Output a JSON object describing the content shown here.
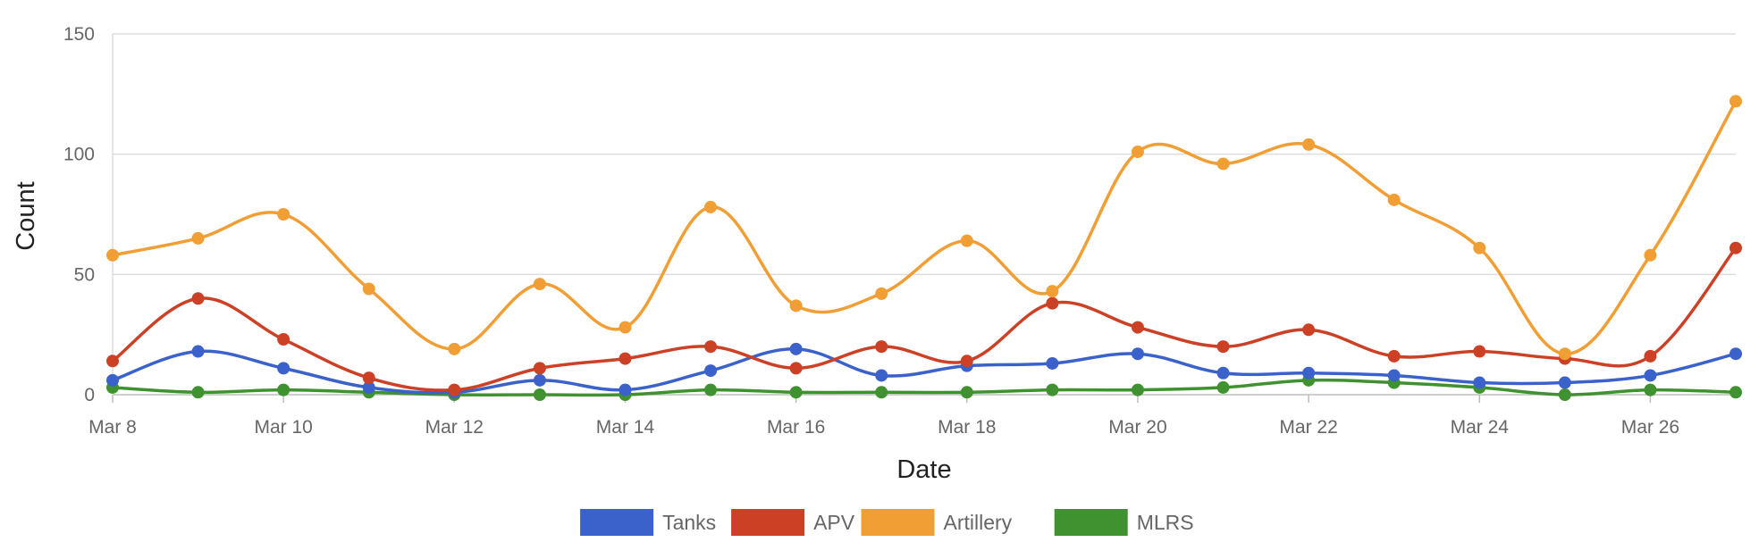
{
  "chart_data": {
    "type": "line",
    "title": "",
    "xlabel": "Date",
    "ylabel": "Count",
    "x": [
      "Mar 8",
      "Mar 9",
      "Mar 10",
      "Mar 11",
      "Mar 12",
      "Mar 13",
      "Mar 14",
      "Mar 15",
      "Mar 16",
      "Mar 17",
      "Mar 18",
      "Mar 19",
      "Mar 20",
      "Mar 21",
      "Mar 22",
      "Mar 23",
      "Mar 24",
      "Mar 25",
      "Mar 26",
      "Mar 27"
    ],
    "x_tick_labels": [
      "Mar 8",
      "Mar 10",
      "Mar 12",
      "Mar 14",
      "Mar 16",
      "Mar 18",
      "Mar 20",
      "Mar 22",
      "Mar 24",
      "Mar 26"
    ],
    "y_ticks": [
      0,
      50,
      100,
      150
    ],
    "ylim": [
      0,
      150
    ],
    "grid": true,
    "legend_position": "bottom",
    "series": [
      {
        "name": "Tanks",
        "color": "#3b62cb",
        "values": [
          6,
          18,
          11,
          3,
          1,
          6,
          2,
          10,
          19,
          8,
          12,
          13,
          17,
          9,
          9,
          8,
          5,
          5,
          8,
          17
        ]
      },
      {
        "name": "APV",
        "color": "#cc4125",
        "values": [
          14,
          40,
          23,
          7,
          2,
          11,
          15,
          20,
          11,
          20,
          14,
          38,
          28,
          20,
          27,
          16,
          18,
          15,
          16,
          61
        ]
      },
      {
        "name": "Artillery",
        "color": "#f19f35",
        "values": [
          58,
          65,
          75,
          44,
          19,
          46,
          28,
          78,
          37,
          42,
          64,
          43,
          101,
          96,
          104,
          81,
          61,
          17,
          58,
          122
        ]
      },
      {
        "name": "MLRS",
        "color": "#3f922f",
        "values": [
          3,
          1,
          2,
          1,
          0,
          0,
          0,
          2,
          1,
          1,
          1,
          2,
          2,
          3,
          6,
          5,
          3,
          0,
          2,
          1
        ]
      }
    ]
  }
}
